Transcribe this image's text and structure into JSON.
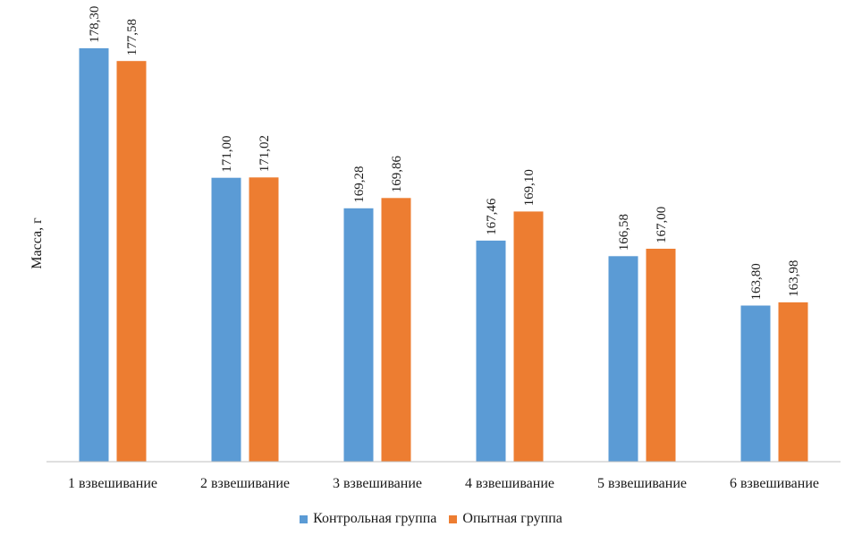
{
  "chart_data": {
    "type": "bar",
    "title": "",
    "xlabel": "",
    "ylabel": "Масса, г",
    "ylim": [
      155,
      179
    ],
    "grid": false,
    "legend_position": "bottom",
    "categories": [
      "1 взвешивание",
      "2 взвешивание",
      "3 взвешивание",
      "4 взвешивание",
      "5 взвешивание",
      "6 взвешивание"
    ],
    "series": [
      {
        "name": "Контрольная группа",
        "color": "#5b9bd5",
        "values": [
          178.3,
          171.0,
          169.28,
          167.46,
          166.58,
          163.8
        ],
        "labels": [
          "178,30",
          "171,00",
          "169,28",
          "167,46",
          "166,58",
          "163,80"
        ]
      },
      {
        "name": "Опытная группа",
        "color": "#ed7d31",
        "values": [
          177.58,
          171.02,
          169.86,
          169.1,
          167.0,
          163.98
        ],
        "labels": [
          "177,58",
          "171,02",
          "169,86",
          "169,10",
          "167,00",
          "163,98"
        ]
      }
    ]
  }
}
